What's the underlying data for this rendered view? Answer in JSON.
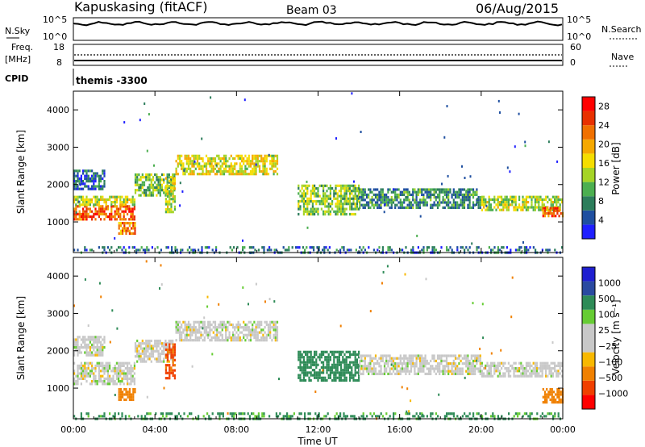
{
  "header": {
    "station": "Kapuskasing (fitACF)",
    "beam": "Beam 03",
    "date": "06/Aug/2015"
  },
  "top_panels": {
    "nsky_label": "N.Sky",
    "nsky_ticks": [
      "10^5",
      "10^0"
    ],
    "nsearch_label": "N.Search",
    "freq_label_1": "Freq.",
    "freq_label_2": "[MHz]",
    "freq_ticks": [
      "18",
      "8"
    ],
    "nave_label": "Nave",
    "nave_ticks": [
      "60",
      "0"
    ],
    "cpid_label": "CPID",
    "cpid_value": "themis -3300"
  },
  "colors": {
    "power": [
      "#1f1fff",
      "#1f4fa0",
      "#2c7d5b",
      "#4caf50",
      "#a5d426",
      "#f5dd00",
      "#f5a800",
      "#f07000",
      "#e83000",
      "#ff0000"
    ],
    "velocity": [
      "#ff0000",
      "#f04000",
      "#f08000",
      "#f8b800",
      "#c8c8c8",
      "#c8c8c8",
      "#66cc33",
      "#2e8b57",
      "#2a4aa0",
      "#1f1fd0"
    ]
  },
  "chart_data": [
    {
      "type": "heatmap",
      "panel": "power",
      "ylabel": "Slant Range [km]",
      "xlabel": "",
      "xticks": [
        "00:00",
        "04:00",
        "08:00",
        "12:00",
        "16:00",
        "20:00",
        "00:00"
      ],
      "xlim_hours": [
        0,
        24
      ],
      "yticks": [
        1000,
        2000,
        3000,
        4000
      ],
      "ylim_km": [
        180,
        4500
      ],
      "colorbar": {
        "label": "Power [dB]",
        "ticks": [
          "4",
          "8",
          "12",
          "16",
          "20",
          "24",
          "28"
        ],
        "range": [
          0,
          30
        ]
      },
      "regions": [
        {
          "t": [
            0.0,
            3.0
          ],
          "r": [
            1100,
            1450
          ],
          "value": 24
        },
        {
          "t": [
            0.0,
            3.0
          ],
          "r": [
            1450,
            1700
          ],
          "value": 14
        },
        {
          "t": [
            0.0,
            1.5
          ],
          "r": [
            1900,
            2400
          ],
          "value": 6
        },
        {
          "t": [
            2.2,
            3.0
          ],
          "r": [
            700,
            1000
          ],
          "value": 22
        },
        {
          "t": [
            3.0,
            5.0
          ],
          "r": [
            1700,
            2300
          ],
          "value": 12
        },
        {
          "t": [
            5.0,
            10.0
          ],
          "r": [
            2300,
            2800
          ],
          "value": 16
        },
        {
          "t": [
            4.5,
            5.0
          ],
          "r": [
            1300,
            2200
          ],
          "value": 14
        },
        {
          "t": [
            11.0,
            14.0
          ],
          "r": [
            1200,
            2000
          ],
          "value": 12
        },
        {
          "t": [
            14.0,
            20.0
          ],
          "r": [
            1400,
            1900
          ],
          "value": 8
        },
        {
          "t": [
            20.0,
            24.0
          ],
          "r": [
            1300,
            1700
          ],
          "value": 14
        },
        {
          "t": [
            23.0,
            24.0
          ],
          "r": [
            1150,
            1400
          ],
          "value": 24
        },
        {
          "t": [
            0.0,
            24.0
          ],
          "r": [
            200,
            350
          ],
          "value": 6
        }
      ]
    },
    {
      "type": "heatmap",
      "panel": "velocity",
      "ylabel": "Slant Range [km]",
      "xlabel": "Time UT",
      "xticks": [
        "00:00",
        "04:00",
        "08:00",
        "12:00",
        "16:00",
        "20:00",
        "00:00"
      ],
      "xlim_hours": [
        0,
        24
      ],
      "yticks": [
        1000,
        2000,
        3000,
        4000
      ],
      "ylim_km": [
        180,
        4500
      ],
      "colorbar": {
        "label": "Velocity [m s⁻¹]",
        "ticks": [
          "1000",
          "500",
          "100",
          "25",
          "−25",
          "−100",
          "−500",
          "−1000"
        ]
      },
      "regions": [
        {
          "t": [
            0.0,
            3.0
          ],
          "r": [
            1100,
            1700
          ],
          "value": 0
        },
        {
          "t": [
            0.0,
            1.5
          ],
          "r": [
            1900,
            2400
          ],
          "value": 0
        },
        {
          "t": [
            2.2,
            3.0
          ],
          "r": [
            700,
            1000
          ],
          "value": -150
        },
        {
          "t": [
            3.0,
            5.0
          ],
          "r": [
            1700,
            2300
          ],
          "value": 0
        },
        {
          "t": [
            5.0,
            10.0
          ],
          "r": [
            2300,
            2800
          ],
          "value": 0
        },
        {
          "t": [
            4.5,
            5.0
          ],
          "r": [
            1300,
            2200
          ],
          "value": -400
        },
        {
          "t": [
            11.0,
            14.0
          ],
          "r": [
            1200,
            2000
          ],
          "value": 150
        },
        {
          "t": [
            14.0,
            20.0
          ],
          "r": [
            1400,
            1900
          ],
          "value": 0
        },
        {
          "t": [
            20.0,
            24.0
          ],
          "r": [
            1300,
            1700
          ],
          "value": 0
        },
        {
          "t": [
            23.0,
            24.0
          ],
          "r": [
            600,
            1000
          ],
          "value": -200
        },
        {
          "t": [
            0.0,
            24.0
          ],
          "r": [
            200,
            350
          ],
          "value": 80
        }
      ]
    }
  ]
}
